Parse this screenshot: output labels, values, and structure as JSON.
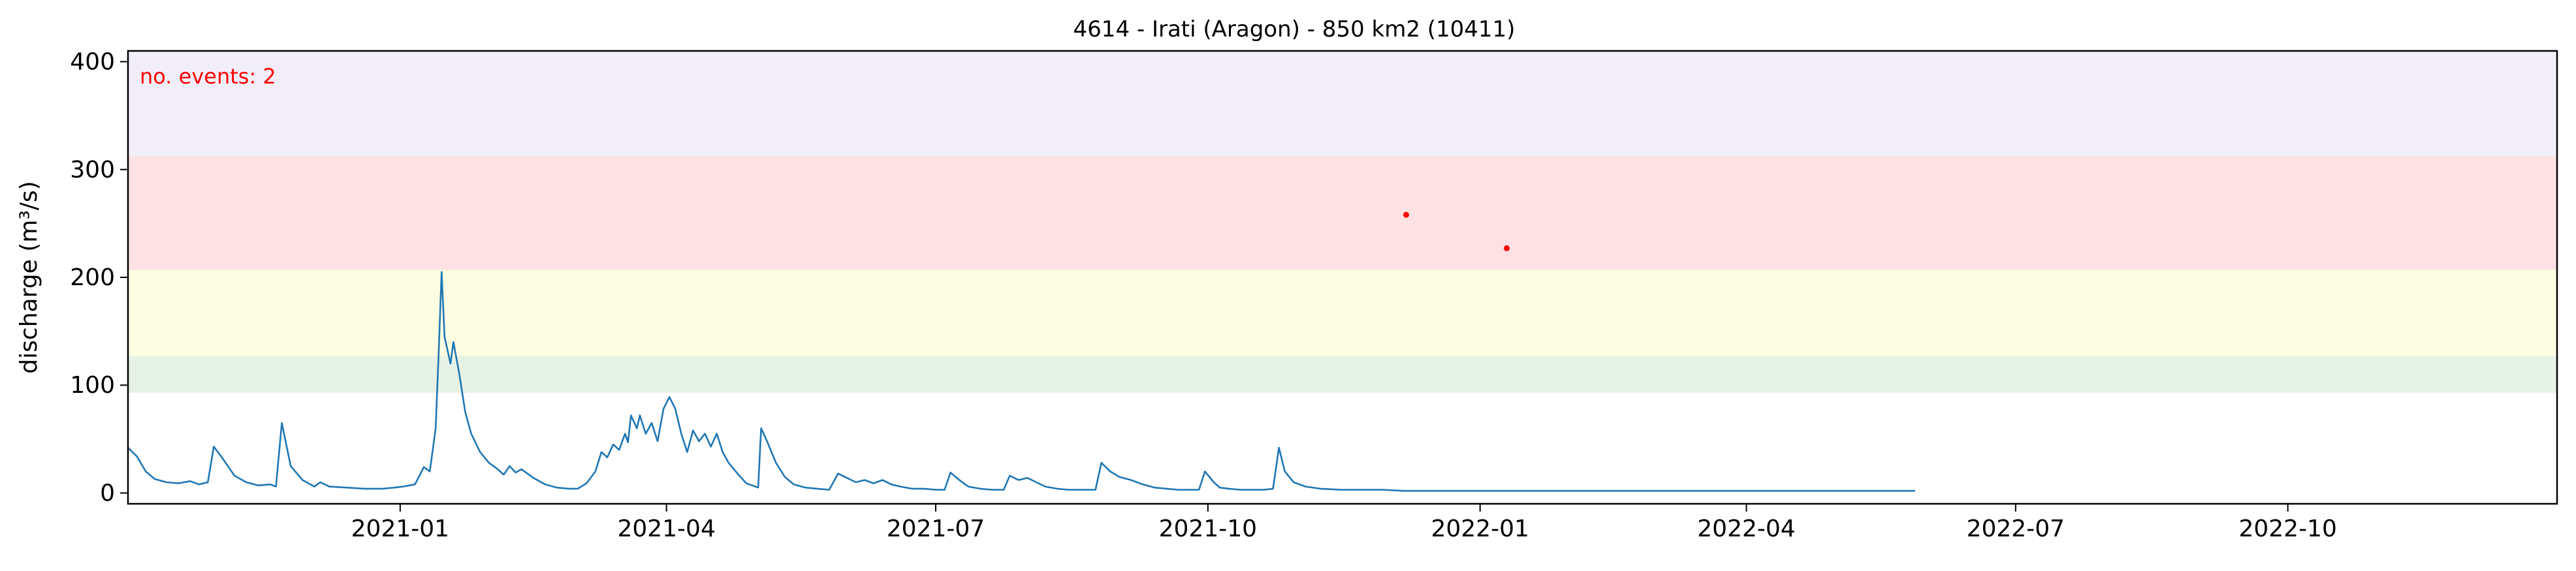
{
  "chart_data": {
    "type": "line",
    "title": "4614 - Irati (Aragon) - 850 km2 (10411)",
    "xlabel": "",
    "ylabel": "discharge (m³/s)",
    "annotation": "no. events: 2",
    "xlim": [
      "2020-10-01",
      "2022-12-31"
    ],
    "ylim": [
      -10,
      410
    ],
    "y_ticks": [
      0,
      100,
      200,
      300,
      400
    ],
    "x_ticks": [
      {
        "date": "2021-01-01",
        "label": "2021-01"
      },
      {
        "date": "2021-04-01",
        "label": "2021-04"
      },
      {
        "date": "2021-07-01",
        "label": "2021-07"
      },
      {
        "date": "2021-10-01",
        "label": "2021-10"
      },
      {
        "date": "2022-01-01",
        "label": "2022-01"
      },
      {
        "date": "2022-04-01",
        "label": "2022-04"
      },
      {
        "date": "2022-07-01",
        "label": "2022-07"
      },
      {
        "date": "2022-10-01",
        "label": "2022-10"
      }
    ],
    "threshold_bands": [
      {
        "from": 93,
        "to": 127,
        "color": "#e6f2e6"
      },
      {
        "from": 127,
        "to": 207,
        "color": "#fdfde1"
      },
      {
        "from": 207,
        "to": 312,
        "color": "#fde1e3"
      },
      {
        "from": 312,
        "to": 410,
        "color": "#f2eef8"
      }
    ],
    "series": [
      {
        "color": "#1f77b4",
        "points": [
          [
            "2020-10-01",
            42
          ],
          [
            "2020-10-04",
            34
          ],
          [
            "2020-10-07",
            20
          ],
          [
            "2020-10-10",
            13
          ],
          [
            "2020-10-14",
            10
          ],
          [
            "2020-10-18",
            9
          ],
          [
            "2020-10-22",
            11
          ],
          [
            "2020-10-25",
            8
          ],
          [
            "2020-10-28",
            10
          ],
          [
            "2020-10-30",
            43
          ],
          [
            "2020-11-02",
            32
          ],
          [
            "2020-11-06",
            16
          ],
          [
            "2020-11-10",
            10
          ],
          [
            "2020-11-14",
            7
          ],
          [
            "2020-11-18",
            8
          ],
          [
            "2020-11-20",
            6
          ],
          [
            "2020-11-22",
            65
          ],
          [
            "2020-11-25",
            25
          ],
          [
            "2020-11-29",
            12
          ],
          [
            "2020-12-03",
            6
          ],
          [
            "2020-12-05",
            10
          ],
          [
            "2020-12-08",
            6
          ],
          [
            "2020-12-14",
            5
          ],
          [
            "2020-12-20",
            4
          ],
          [
            "2020-12-26",
            4
          ],
          [
            "2020-12-30",
            5
          ],
          [
            "2021-01-02",
            6
          ],
          [
            "2021-01-06",
            8
          ],
          [
            "2021-01-09",
            24
          ],
          [
            "2021-01-11",
            20
          ],
          [
            "2021-01-13",
            60
          ],
          [
            "2021-01-14",
            130
          ],
          [
            "2021-01-15",
            205
          ],
          [
            "2021-01-16",
            145
          ],
          [
            "2021-01-18",
            120
          ],
          [
            "2021-01-19",
            140
          ],
          [
            "2021-01-21",
            110
          ],
          [
            "2021-01-23",
            75
          ],
          [
            "2021-01-25",
            55
          ],
          [
            "2021-01-28",
            38
          ],
          [
            "2021-01-31",
            28
          ],
          [
            "2021-02-03",
            22
          ],
          [
            "2021-02-05",
            17
          ],
          [
            "2021-02-07",
            25
          ],
          [
            "2021-02-09",
            19
          ],
          [
            "2021-02-11",
            22
          ],
          [
            "2021-02-13",
            18
          ],
          [
            "2021-02-15",
            14
          ],
          [
            "2021-02-19",
            8
          ],
          [
            "2021-02-23",
            5
          ],
          [
            "2021-02-27",
            4
          ],
          [
            "2021-03-02",
            4
          ],
          [
            "2021-03-05",
            9
          ],
          [
            "2021-03-08",
            20
          ],
          [
            "2021-03-10",
            38
          ],
          [
            "2021-03-12",
            33
          ],
          [
            "2021-03-14",
            45
          ],
          [
            "2021-03-16",
            40
          ],
          [
            "2021-03-18",
            55
          ],
          [
            "2021-03-19",
            47
          ],
          [
            "2021-03-20",
            72
          ],
          [
            "2021-03-22",
            60
          ],
          [
            "2021-03-23",
            72
          ],
          [
            "2021-03-25",
            55
          ],
          [
            "2021-03-27",
            65
          ],
          [
            "2021-03-29",
            48
          ],
          [
            "2021-03-31",
            78
          ],
          [
            "2021-04-02",
            89
          ],
          [
            "2021-04-04",
            78
          ],
          [
            "2021-04-06",
            55
          ],
          [
            "2021-04-08",
            38
          ],
          [
            "2021-04-10",
            58
          ],
          [
            "2021-04-12",
            48
          ],
          [
            "2021-04-14",
            55
          ],
          [
            "2021-04-16",
            43
          ],
          [
            "2021-04-18",
            55
          ],
          [
            "2021-04-20",
            38
          ],
          [
            "2021-04-22",
            28
          ],
          [
            "2021-04-25",
            18
          ],
          [
            "2021-04-28",
            9
          ],
          [
            "2021-05-02",
            5
          ],
          [
            "2021-05-03",
            60
          ],
          [
            "2021-05-05",
            48
          ],
          [
            "2021-05-08",
            28
          ],
          [
            "2021-05-11",
            15
          ],
          [
            "2021-05-14",
            8
          ],
          [
            "2021-05-18",
            5
          ],
          [
            "2021-05-22",
            4
          ],
          [
            "2021-05-26",
            3
          ],
          [
            "2021-05-29",
            18
          ],
          [
            "2021-06-01",
            14
          ],
          [
            "2021-06-04",
            10
          ],
          [
            "2021-06-07",
            12
          ],
          [
            "2021-06-10",
            9
          ],
          [
            "2021-06-13",
            12
          ],
          [
            "2021-06-16",
            8
          ],
          [
            "2021-06-19",
            6
          ],
          [
            "2021-06-23",
            4
          ],
          [
            "2021-06-27",
            4
          ],
          [
            "2021-07-01",
            3
          ],
          [
            "2021-07-04",
            3
          ],
          [
            "2021-07-06",
            19
          ],
          [
            "2021-07-09",
            12
          ],
          [
            "2021-07-12",
            6
          ],
          [
            "2021-07-16",
            4
          ],
          [
            "2021-07-20",
            3
          ],
          [
            "2021-07-24",
            3
          ],
          [
            "2021-07-26",
            16
          ],
          [
            "2021-07-29",
            12
          ],
          [
            "2021-08-01",
            14
          ],
          [
            "2021-08-04",
            10
          ],
          [
            "2021-08-07",
            6
          ],
          [
            "2021-08-11",
            4
          ],
          [
            "2021-08-15",
            3
          ],
          [
            "2021-08-20",
            3
          ],
          [
            "2021-08-24",
            3
          ],
          [
            "2021-08-26",
            28
          ],
          [
            "2021-08-29",
            20
          ],
          [
            "2021-09-01",
            15
          ],
          [
            "2021-09-05",
            12
          ],
          [
            "2021-09-09",
            8
          ],
          [
            "2021-09-13",
            5
          ],
          [
            "2021-09-17",
            4
          ],
          [
            "2021-09-21",
            3
          ],
          [
            "2021-09-25",
            3
          ],
          [
            "2021-09-28",
            3
          ],
          [
            "2021-09-30",
            20
          ],
          [
            "2021-10-03",
            10
          ],
          [
            "2021-10-05",
            5
          ],
          [
            "2021-10-08",
            4
          ],
          [
            "2021-10-12",
            3
          ],
          [
            "2021-10-16",
            3
          ],
          [
            "2021-10-20",
            3
          ],
          [
            "2021-10-23",
            4
          ],
          [
            "2021-10-25",
            42
          ],
          [
            "2021-10-27",
            20
          ],
          [
            "2021-10-30",
            10
          ],
          [
            "2021-11-03",
            6
          ],
          [
            "2021-11-08",
            4
          ],
          [
            "2021-11-15",
            3
          ],
          [
            "2021-11-22",
            3
          ],
          [
            "2021-11-29",
            3
          ],
          [
            "2021-12-06",
            2
          ],
          [
            "2021-12-13",
            2
          ],
          [
            "2021-12-20",
            2
          ],
          [
            "2021-12-27",
            2
          ],
          [
            "2022-01-03",
            2
          ],
          [
            "2022-01-10",
            2
          ],
          [
            "2022-01-17",
            2
          ],
          [
            "2022-01-24",
            2
          ],
          [
            "2022-01-31",
            2
          ],
          [
            "2022-02-07",
            2
          ],
          [
            "2022-02-14",
            2
          ],
          [
            "2022-02-21",
            2
          ],
          [
            "2022-02-28",
            2
          ],
          [
            "2022-03-07",
            2
          ],
          [
            "2022-03-14",
            2
          ],
          [
            "2022-03-21",
            2
          ],
          [
            "2022-03-28",
            2
          ],
          [
            "2022-04-04",
            2
          ],
          [
            "2022-04-11",
            2
          ],
          [
            "2022-04-18",
            2
          ],
          [
            "2022-04-25",
            2
          ],
          [
            "2022-05-02",
            2
          ],
          [
            "2022-05-09",
            2
          ],
          [
            "2022-05-16",
            2
          ],
          [
            "2022-05-23",
            2
          ],
          [
            "2022-05-28",
            2
          ]
        ]
      }
    ],
    "events": [
      {
        "date": "2021-12-07",
        "value": 258
      },
      {
        "date": "2022-01-10",
        "value": 227
      }
    ]
  }
}
